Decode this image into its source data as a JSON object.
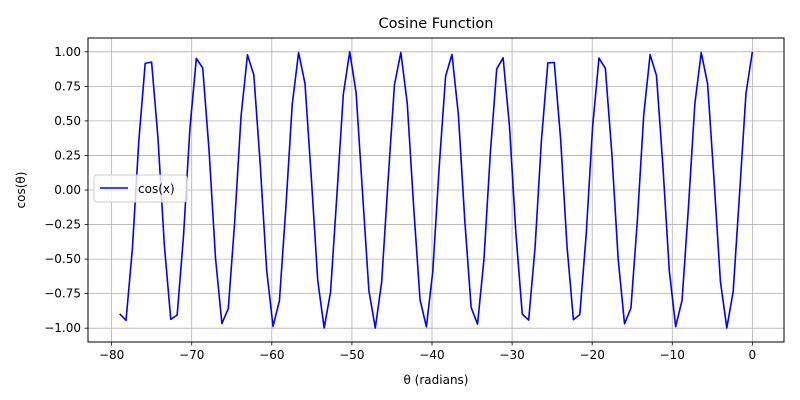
{
  "chart_data": {
    "type": "line",
    "title": "Cosine Function",
    "xlabel": "θ (radians)",
    "ylabel": "cos(θ)",
    "xlim": [
      -82.95,
      3.95
    ],
    "ylim": [
      -1.1,
      1.1
    ],
    "xticks": [
      -80,
      -70,
      -60,
      -50,
      -40,
      -30,
      -20,
      -10,
      0
    ],
    "xtick_labels": [
      "−80",
      "−70",
      "−60",
      "−50",
      "−40",
      "−30",
      "−20",
      "−10",
      "0"
    ],
    "yticks": [
      -1.0,
      -0.75,
      -0.5,
      -0.25,
      0.0,
      0.25,
      0.5,
      0.75,
      1.0
    ],
    "ytick_labels": [
      "−1.00",
      "−0.75",
      "−0.50",
      "−0.25",
      "0.00",
      "0.25",
      "0.50",
      "0.75",
      "1.00"
    ],
    "grid": true,
    "legend": {
      "position": "center-left"
    },
    "series": [
      {
        "name": "cos(x)",
        "color": "#0000ff",
        "function": "cos",
        "x_start": -79,
        "x_end": 0,
        "num_points": 100
      }
    ]
  }
}
